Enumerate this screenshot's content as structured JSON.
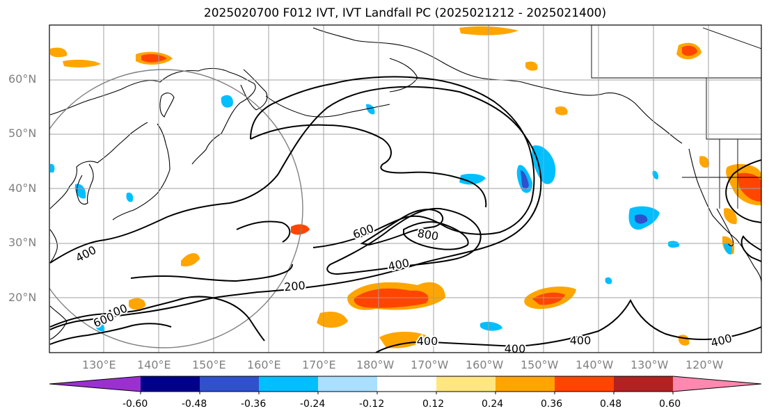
{
  "title": "2025020700 F012 IVT, IVT Landfall PC (2025021212 - 2025021400)",
  "lat_labels": [
    "60°N",
    "50°N",
    "40°N",
    "30°N",
    "20°N"
  ],
  "lon_labels": [
    "130°E",
    "140°E",
    "150°E",
    "160°E",
    "170°E",
    "180°W",
    "170°W",
    "160°W",
    "150°W",
    "140°W",
    "130°W",
    "120°W"
  ],
  "contour_labels": [
    "400",
    "600",
    "800",
    "400",
    "200",
    "400",
    "600",
    "400",
    "400",
    "400",
    "400"
  ],
  "colorbar": {
    "colors": [
      "#9b30d0",
      "#00008b",
      "#3050cc",
      "#00bfff",
      "#aadfff",
      "#ffffff",
      "#ffe680",
      "#ffa500",
      "#ff4500",
      "#b22222",
      "#ff88b0"
    ],
    "tick_labels": [
      "-0.60",
      "-0.48",
      "-0.36",
      "-0.24",
      "-0.12",
      "0.12",
      "0.24",
      "0.36",
      "0.48",
      "0.60"
    ]
  }
}
